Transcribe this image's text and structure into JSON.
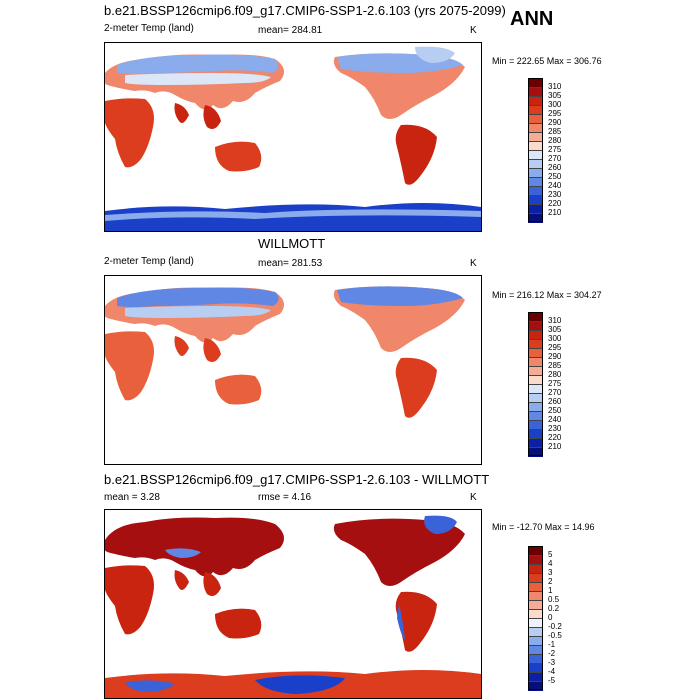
{
  "season": "ANN",
  "panels": [
    {
      "id": "model",
      "title": "b.e21.BSSP126cmip6.f09_g17.CMIP6-SSP1-2.6.103 (yrs 2075-2099)",
      "left_label": "2-meter Temp (land)",
      "mid_label": "mean= 284.81",
      "right_label": "K",
      "minmax": "Min = 222.65 Max = 306.76",
      "colorbar": {
        "labels": [
          "310",
          "305",
          "300",
          "295",
          "290",
          "285",
          "280",
          "275",
          "270",
          "260",
          "250",
          "240",
          "230",
          "220",
          "210"
        ],
        "colors": [
          "#6b0000",
          "#a50f0f",
          "#c8240f",
          "#dc3d1e",
          "#e8603c",
          "#f0866a",
          "#f5ad98",
          "#fbdccc",
          "#dbe6f7",
          "#b8cdf2",
          "#8aabec",
          "#5f87e3",
          "#3a63d9",
          "#1a3fc8",
          "#0b20a6",
          "#060f7a"
        ]
      }
    },
    {
      "id": "obs",
      "title": "WILLMOTT",
      "left_label": "2-meter Temp (land)",
      "mid_label": "mean= 281.53",
      "right_label": "K",
      "minmax": "Min = 216.12 Max = 304.27",
      "colorbar": {
        "labels": [
          "310",
          "305",
          "300",
          "295",
          "290",
          "285",
          "280",
          "275",
          "270",
          "260",
          "250",
          "240",
          "230",
          "220",
          "210"
        ],
        "colors": [
          "#6b0000",
          "#a50f0f",
          "#c8240f",
          "#dc3d1e",
          "#e8603c",
          "#f0866a",
          "#f5ad98",
          "#fbdccc",
          "#dbe6f7",
          "#b8cdf2",
          "#8aabec",
          "#5f87e3",
          "#3a63d9",
          "#1a3fc8",
          "#0b20a6",
          "#060f7a"
        ]
      }
    },
    {
      "id": "diff",
      "title": "b.e21.BSSP126cmip6.f09_g17.CMIP6-SSP1-2.6.103 - WILLMOTT",
      "left_label": "mean =   3.28",
      "mid_label": "rmse =   4.16",
      "right_label": "K",
      "minmax": "Min = -12.70 Max =  14.96",
      "colorbar": {
        "labels": [
          "5",
          "4",
          "3",
          "2",
          "1",
          "0.5",
          "0.2",
          "0",
          "-0.2",
          "-0.5",
          "-1",
          "-2",
          "-3",
          "-4",
          "-5"
        ],
        "colors": [
          "#6b0000",
          "#a50f0f",
          "#c8240f",
          "#dc3d1e",
          "#e8603c",
          "#f0866a",
          "#f5ad98",
          "#fbdccc",
          "#eef2fb",
          "#b8cdf2",
          "#8aabec",
          "#5f87e3",
          "#3a63d9",
          "#1a3fc8",
          "#0b20a6",
          "#060f7a"
        ]
      }
    }
  ]
}
